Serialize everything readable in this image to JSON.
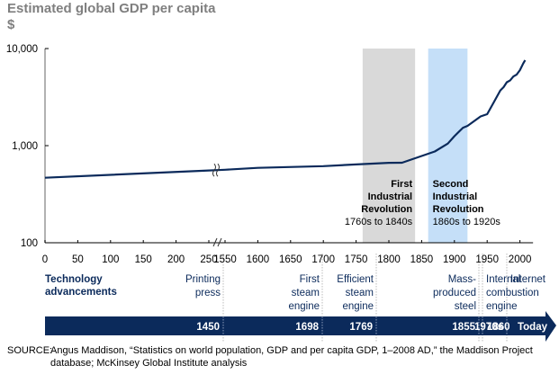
{
  "chart_data": {
    "type": "line",
    "title": "Estimated global GDP per capita",
    "ylabel": "$",
    "xlabel": "",
    "yscale": "log",
    "ylim": [
      100,
      10000
    ],
    "yticks": [
      {
        "value": 100,
        "label": "100"
      },
      {
        "value": 1000,
        "label": "1,000"
      },
      {
        "value": 10000,
        "label": "10,000"
      }
    ],
    "xaxis_break": {
      "after": 250,
      "before": 1550
    },
    "xticks": [
      0,
      50,
      100,
      150,
      200,
      250,
      1550,
      1600,
      1650,
      1700,
      1750,
      1800,
      1850,
      1900,
      1950,
      2000
    ],
    "grid": false,
    "series": [
      {
        "name": "Global GDP per capita",
        "color": "#0b2a5b",
        "points": [
          [
            0,
            467
          ],
          [
            250,
            555
          ],
          [
            1550,
            565
          ],
          [
            1600,
            590
          ],
          [
            1700,
            615
          ],
          [
            1750,
            640
          ],
          [
            1800,
            665
          ],
          [
            1820,
            667
          ],
          [
            1870,
            870
          ],
          [
            1890,
            1050
          ],
          [
            1900,
            1250
          ],
          [
            1913,
            1530
          ],
          [
            1920,
            1600
          ],
          [
            1940,
            2000
          ],
          [
            1950,
            2110
          ],
          [
            1960,
            2790
          ],
          [
            1970,
            3700
          ],
          [
            1975,
            4000
          ],
          [
            1980,
            4500
          ],
          [
            1985,
            4700
          ],
          [
            1990,
            5150
          ],
          [
            1995,
            5400
          ],
          [
            2000,
            6000
          ],
          [
            2005,
            7000
          ],
          [
            2008,
            7600
          ]
        ]
      }
    ],
    "shaded_regions": [
      {
        "from": 1760,
        "to": 1840,
        "color": "#d9d9d9",
        "title_lines": [
          "First",
          "Industrial",
          "Revolution"
        ],
        "subtitle": "1760s to 1840s",
        "align": "right"
      },
      {
        "from": 1860,
        "to": 1920,
        "color": "#c5dff8",
        "title_lines": [
          "Second",
          "Industrial",
          "Revolution"
        ],
        "subtitle": "1860s to 1920s",
        "align": "left"
      }
    ]
  },
  "header": {
    "title": "Estimated global GDP per capita",
    "unit": "$"
  },
  "technology": {
    "heading_lines": [
      "Technology",
      "advancements"
    ],
    "items": [
      {
        "lines": [
          "Printing",
          "press"
        ],
        "year_label": "1450",
        "align": "right"
      },
      {
        "lines": [
          "First",
          "steam",
          "engine"
        ],
        "year_label": "1698",
        "align": "right"
      },
      {
        "lines": [
          "Efficient",
          "steam",
          "engine"
        ],
        "year_label": "1769",
        "align": "right"
      },
      {
        "lines": [
          "Mass-",
          "produced",
          "steel"
        ],
        "year_label": "1855",
        "align": "right"
      },
      {
        "lines": [
          "Internal",
          "combustion",
          "engine"
        ],
        "year_label": "1860",
        "align": "left"
      },
      {
        "lines": [
          "Internet"
        ],
        "year_label": "1970s",
        "align": "left"
      }
    ],
    "today_label": "Today",
    "arrow_color": "#0b2a5b"
  },
  "source": {
    "label": "SOURCE:",
    "line1": "Angus Maddison, “Statistics on world population, GDP and per capita GDP, 1–2008 AD,” the Maddison Project",
    "line2": "database; McKinsey Global Institute analysis"
  }
}
